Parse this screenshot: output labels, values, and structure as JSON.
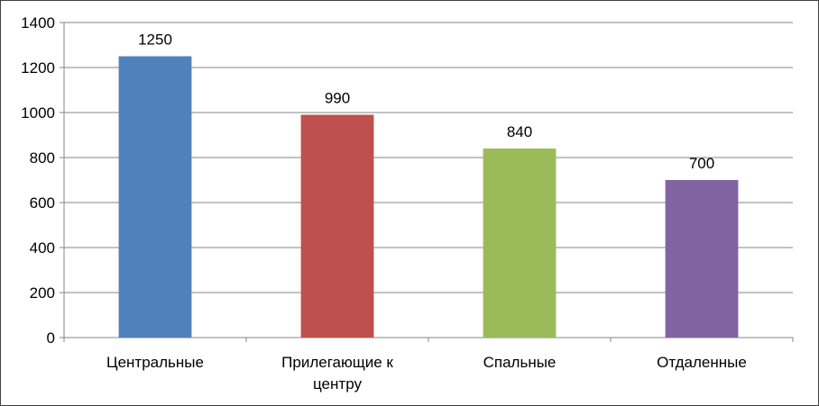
{
  "chart_data": {
    "type": "bar",
    "categories": [
      "Центральные",
      "Прилегающие к центру",
      "Спальные",
      "Отдаленные"
    ],
    "category_lines": [
      [
        "Центральные"
      ],
      [
        "Прилегающие к",
        "центру"
      ],
      [
        "Спальные"
      ],
      [
        "Отдаленные"
      ]
    ],
    "values": [
      1250,
      990,
      840,
      700
    ],
    "data_labels": [
      "1250",
      "990",
      "840",
      "700"
    ],
    "colors": [
      "#4F81BD",
      "#C0504D",
      "#9BBB59",
      "#8064A2"
    ],
    "ylim": [
      0,
      1400
    ],
    "yticks": [
      0,
      200,
      400,
      600,
      800,
      1000,
      1200,
      1400
    ],
    "ytick_labels": [
      "0",
      "200",
      "400",
      "600",
      "800",
      "1000",
      "1200",
      "1400"
    ],
    "grid": true,
    "legend": "none",
    "title": "",
    "xlabel": "",
    "ylabel": ""
  }
}
